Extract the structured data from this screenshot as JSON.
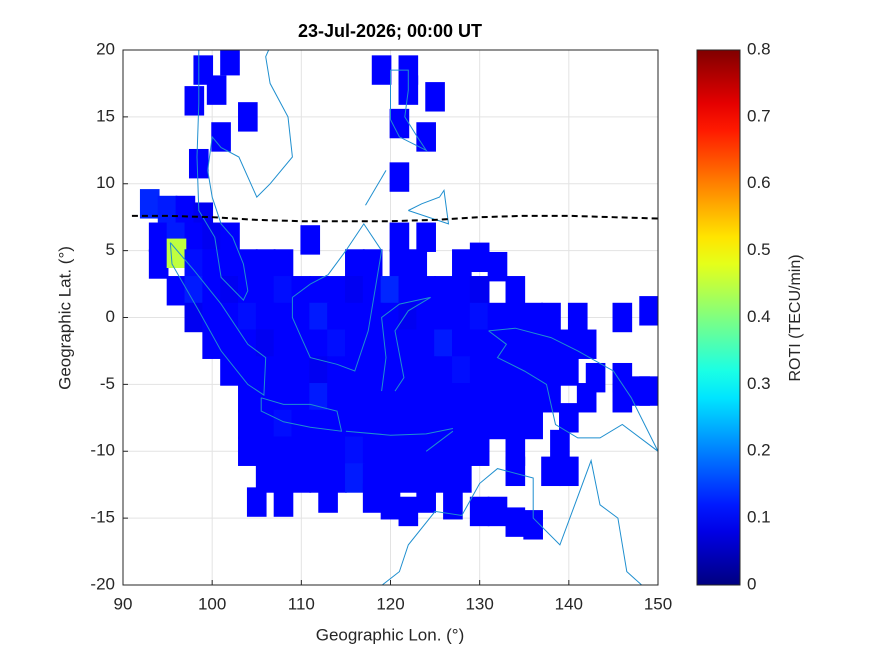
{
  "chart_data": {
    "type": "heatmap",
    "title": "23-Jul-2026; 00:00 UT",
    "x_label": "Geographic Lon. (°)",
    "y_label": "Geographic Lat. (°)",
    "colorbar_label": "ROTI (TECU/min)",
    "xlim": [
      90,
      150
    ],
    "xticks": [
      90,
      100,
      110,
      120,
      130,
      140,
      150
    ],
    "ylim": [
      -20,
      20
    ],
    "yticks": [
      -20,
      -15,
      -10,
      -5,
      0,
      5,
      10,
      15,
      20
    ],
    "clim": [
      0,
      0.8
    ],
    "cticks": [
      0,
      0.1,
      0.2,
      0.3,
      0.4,
      0.5,
      0.6,
      0.7,
      0.8
    ],
    "grid": true,
    "colormap": "jet",
    "dip_equator": {
      "color": "#000000",
      "x": [
        91,
        95,
        100,
        105,
        110,
        115,
        120,
        125,
        130,
        135,
        140,
        145,
        150
      ],
      "y": [
        7.6,
        7.6,
        7.5,
        7.3,
        7.2,
        7.2,
        7.2,
        7.3,
        7.5,
        7.6,
        7.6,
        7.5,
        7.4
      ]
    },
    "points": [
      [
        99,
        18.5,
        0.1
      ],
      [
        102,
        19.2,
        0.1
      ],
      [
        119,
        18.5,
        0.1
      ],
      [
        122,
        18.5,
        0.1
      ],
      [
        100.5,
        17,
        0.1
      ],
      [
        98,
        16.2,
        0.1
      ],
      [
        125,
        16.5,
        0.1
      ],
      [
        122,
        17,
        0.1
      ],
      [
        104,
        15,
        0.1
      ],
      [
        121,
        14.5,
        0.1
      ],
      [
        124,
        13.5,
        0.1
      ],
      [
        101,
        13.5,
        0.1
      ],
      [
        98.5,
        11.5,
        0.1
      ],
      [
        121,
        10.5,
        0.1
      ],
      [
        93,
        8.5,
        0.13
      ],
      [
        95,
        8,
        0.12
      ],
      [
        97,
        8,
        0.1
      ],
      [
        99,
        7.5,
        0.09
      ],
      [
        94,
        6,
        0.1
      ],
      [
        96,
        6,
        0.12
      ],
      [
        98,
        6,
        0.1
      ],
      [
        100,
        6,
        0.09
      ],
      [
        102,
        6,
        0.1
      ],
      [
        111,
        5.8,
        0.1
      ],
      [
        121,
        6,
        0.1
      ],
      [
        124,
        6,
        0.1
      ],
      [
        94,
        4,
        0.1
      ],
      [
        96,
        4.8,
        0.45
      ],
      [
        98,
        4,
        0.11
      ],
      [
        100,
        4,
        0.1
      ],
      [
        102,
        4,
        0.1
      ],
      [
        104,
        4,
        0.1
      ],
      [
        106,
        4,
        0.1
      ],
      [
        108,
        4,
        0.1
      ],
      [
        116,
        4,
        0.1
      ],
      [
        118,
        4,
        0.1
      ],
      [
        121,
        4,
        0.1
      ],
      [
        123,
        4,
        0.1
      ],
      [
        128,
        4,
        0.1
      ],
      [
        130,
        4.5,
        0.1
      ],
      [
        132,
        3.8,
        0.1
      ],
      [
        96,
        2,
        0.1
      ],
      [
        98,
        2,
        0.12
      ],
      [
        100,
        2,
        0.1
      ],
      [
        102,
        2,
        0.09
      ],
      [
        104,
        2,
        0.1
      ],
      [
        106,
        2,
        0.1
      ],
      [
        108,
        2,
        0.11
      ],
      [
        110,
        2,
        0.1
      ],
      [
        112,
        2,
        0.1
      ],
      [
        114,
        2,
        0.1
      ],
      [
        116,
        2,
        0.09
      ],
      [
        118,
        2,
        0.1
      ],
      [
        120,
        2,
        0.13
      ],
      [
        122,
        2,
        0.1
      ],
      [
        124,
        2,
        0.1
      ],
      [
        126,
        2,
        0.1
      ],
      [
        128,
        2,
        0.1
      ],
      [
        130,
        2,
        0.09
      ],
      [
        134,
        2,
        0.1
      ],
      [
        98,
        0,
        0.09
      ],
      [
        100,
        0,
        0.1
      ],
      [
        102,
        0,
        0.1
      ],
      [
        104,
        0,
        0.11
      ],
      [
        106,
        0,
        0.1
      ],
      [
        108,
        0,
        0.1
      ],
      [
        110,
        0,
        0.1
      ],
      [
        112,
        0,
        0.12
      ],
      [
        114,
        0,
        0.1
      ],
      [
        116,
        0,
        0.1
      ],
      [
        118,
        0,
        0.1
      ],
      [
        120,
        0,
        0.1
      ],
      [
        122,
        0,
        0.09
      ],
      [
        124,
        0,
        0.1
      ],
      [
        126,
        0,
        0.1
      ],
      [
        128,
        0,
        0.1
      ],
      [
        130,
        0,
        0.11
      ],
      [
        132,
        0,
        0.1
      ],
      [
        134,
        0,
        0.1
      ],
      [
        136,
        0,
        0.1
      ],
      [
        138,
        0,
        0.1
      ],
      [
        141,
        0,
        0.1
      ],
      [
        146,
        0,
        0.1
      ],
      [
        149,
        0.5,
        0.1
      ],
      [
        100,
        -2,
        0.1
      ],
      [
        102,
        -2,
        0.1
      ],
      [
        104,
        -2,
        0.1
      ],
      [
        106,
        -2,
        0.09
      ],
      [
        108,
        -2,
        0.1
      ],
      [
        110,
        -2,
        0.1
      ],
      [
        112,
        -2,
        0.1
      ],
      [
        114,
        -2,
        0.11
      ],
      [
        116,
        -2,
        0.1
      ],
      [
        118,
        -2,
        0.1
      ],
      [
        120,
        -2,
        0.1
      ],
      [
        122,
        -2,
        0.1
      ],
      [
        124,
        -2,
        0.1
      ],
      [
        126,
        -2,
        0.12
      ],
      [
        128,
        -2,
        0.1
      ],
      [
        130,
        -2,
        0.1
      ],
      [
        132,
        -2,
        0.1
      ],
      [
        134,
        -2,
        0.1
      ],
      [
        136,
        -2,
        0.1
      ],
      [
        138,
        -2,
        0.1
      ],
      [
        140,
        -2,
        0.1
      ],
      [
        142,
        -2,
        0.1
      ],
      [
        102,
        -4,
        0.1
      ],
      [
        104,
        -4,
        0.1
      ],
      [
        106,
        -4,
        0.1
      ],
      [
        108,
        -4,
        0.1
      ],
      [
        110,
        -4,
        0.1
      ],
      [
        112,
        -4,
        0.09
      ],
      [
        114,
        -4,
        0.1
      ],
      [
        116,
        -4,
        0.1
      ],
      [
        118,
        -4,
        0.1
      ],
      [
        120,
        -4,
        0.1
      ],
      [
        122,
        -4,
        0.1
      ],
      [
        124,
        -4,
        0.1
      ],
      [
        126,
        -4,
        0.1
      ],
      [
        128,
        -4,
        0.11
      ],
      [
        130,
        -4,
        0.1
      ],
      [
        132,
        -4,
        0.1
      ],
      [
        134,
        -4,
        0.1
      ],
      [
        136,
        -4,
        0.1
      ],
      [
        138,
        -4,
        0.1
      ],
      [
        140,
        -4,
        0.1
      ],
      [
        143,
        -4.5,
        0.1
      ],
      [
        146,
        -4.5,
        0.1
      ],
      [
        148,
        -5.5,
        0.1
      ],
      [
        104,
        -6,
        0.1
      ],
      [
        106,
        -6,
        0.1
      ],
      [
        108,
        -6,
        0.1
      ],
      [
        110,
        -6,
        0.1
      ],
      [
        112,
        -6,
        0.12
      ],
      [
        114,
        -6,
        0.1
      ],
      [
        116,
        -6,
        0.1
      ],
      [
        118,
        -6,
        0.1
      ],
      [
        120,
        -6,
        0.1
      ],
      [
        122,
        -6,
        0.1
      ],
      [
        124,
        -6,
        0.1
      ],
      [
        126,
        -6,
        0.1
      ],
      [
        128,
        -6,
        0.1
      ],
      [
        130,
        -6,
        0.1
      ],
      [
        132,
        -6,
        0.1
      ],
      [
        134,
        -6,
        0.1
      ],
      [
        136,
        -6,
        0.1
      ],
      [
        138,
        -6,
        0.1
      ],
      [
        142,
        -6,
        0.1
      ],
      [
        146,
        -6,
        0.1
      ],
      [
        149,
        -5.5,
        0.1
      ],
      [
        104,
        -8,
        0.1
      ],
      [
        106,
        -8,
        0.1
      ],
      [
        108,
        -8,
        0.11
      ],
      [
        110,
        -8,
        0.1
      ],
      [
        112,
        -8,
        0.1
      ],
      [
        114,
        -8,
        0.1
      ],
      [
        116,
        -8,
        0.1
      ],
      [
        118,
        -8,
        0.1
      ],
      [
        120,
        -8,
        0.1
      ],
      [
        122,
        -8,
        0.1
      ],
      [
        124,
        -8,
        0.1
      ],
      [
        126,
        -8,
        0.1
      ],
      [
        128,
        -8,
        0.1
      ],
      [
        130,
        -8,
        0.1
      ],
      [
        132,
        -8,
        0.1
      ],
      [
        134,
        -8,
        0.1
      ],
      [
        136,
        -8,
        0.1
      ],
      [
        140,
        -7.5,
        0.1
      ],
      [
        104,
        -10,
        0.1
      ],
      [
        106,
        -10,
        0.1
      ],
      [
        108,
        -10,
        0.1
      ],
      [
        110,
        -10,
        0.1
      ],
      [
        112,
        -10,
        0.1
      ],
      [
        114,
        -10,
        0.1
      ],
      [
        116,
        -10,
        0.11
      ],
      [
        118,
        -10,
        0.1
      ],
      [
        120,
        -10,
        0.1
      ],
      [
        122,
        -10,
        0.1
      ],
      [
        124,
        -10,
        0.1
      ],
      [
        126,
        -10,
        0.1
      ],
      [
        128,
        -10,
        0.1
      ],
      [
        130,
        -10,
        0.1
      ],
      [
        134,
        -10,
        0.1
      ],
      [
        139,
        -9.5,
        0.1
      ],
      [
        106,
        -12,
        0.1
      ],
      [
        108,
        -12,
        0.1
      ],
      [
        110,
        -12,
        0.1
      ],
      [
        112,
        -12,
        0.1
      ],
      [
        114,
        -12,
        0.1
      ],
      [
        116,
        -12,
        0.12
      ],
      [
        118,
        -12,
        0.1
      ],
      [
        120,
        -12,
        0.1
      ],
      [
        122,
        -12,
        0.1
      ],
      [
        124,
        -12,
        0.1
      ],
      [
        126,
        -12,
        0.1
      ],
      [
        128,
        -12,
        0.1
      ],
      [
        134,
        -11.5,
        0.1
      ],
      [
        138,
        -11.5,
        0.1
      ],
      [
        140,
        -11.5,
        0.1
      ],
      [
        105,
        -13.8,
        0.1
      ],
      [
        108,
        -13.8,
        0.1
      ],
      [
        113,
        -13.5,
        0.1
      ],
      [
        118,
        -13.5,
        0.1
      ],
      [
        120,
        -14,
        0.1
      ],
      [
        122,
        -14.5,
        0.1
      ],
      [
        124,
        -13.5,
        0.1
      ],
      [
        127,
        -14,
        0.1
      ],
      [
        130,
        -14.5,
        0.1
      ],
      [
        132,
        -14.5,
        0.1
      ],
      [
        134,
        -15.3,
        0.1
      ],
      [
        136,
        -15.5,
        0.1
      ]
    ]
  }
}
